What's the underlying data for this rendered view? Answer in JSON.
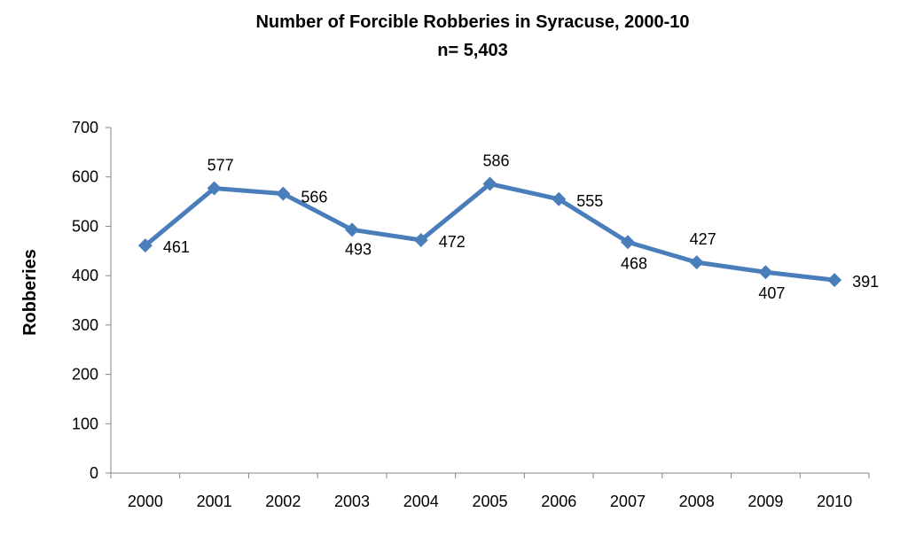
{
  "chart_data": {
    "type": "line",
    "title": "Number of Forcible Robberies in Syracuse, 2000-10",
    "subtitle": "n= 5,403",
    "xlabel": "",
    "ylabel": "Robberies",
    "ylim": [
      0,
      700
    ],
    "yticks": [
      "0",
      "100",
      "200",
      "300",
      "400",
      "500",
      "600",
      "700"
    ],
    "categories": [
      "2000",
      "2001",
      "2002",
      "2003",
      "2004",
      "2005",
      "2006",
      "2007",
      "2008",
      "2009",
      "2010"
    ],
    "series": [
      {
        "values": [
          461,
          577,
          566,
          493,
          472,
          586,
          555,
          468,
          427,
          407,
          391
        ]
      }
    ],
    "data_labels": [
      "461",
      "577",
      "566",
      "493",
      "472",
      "586",
      "555",
      "468",
      "427",
      "407",
      "391"
    ],
    "grid": false,
    "legend": "none",
    "line_color": "#4a7ebb"
  }
}
